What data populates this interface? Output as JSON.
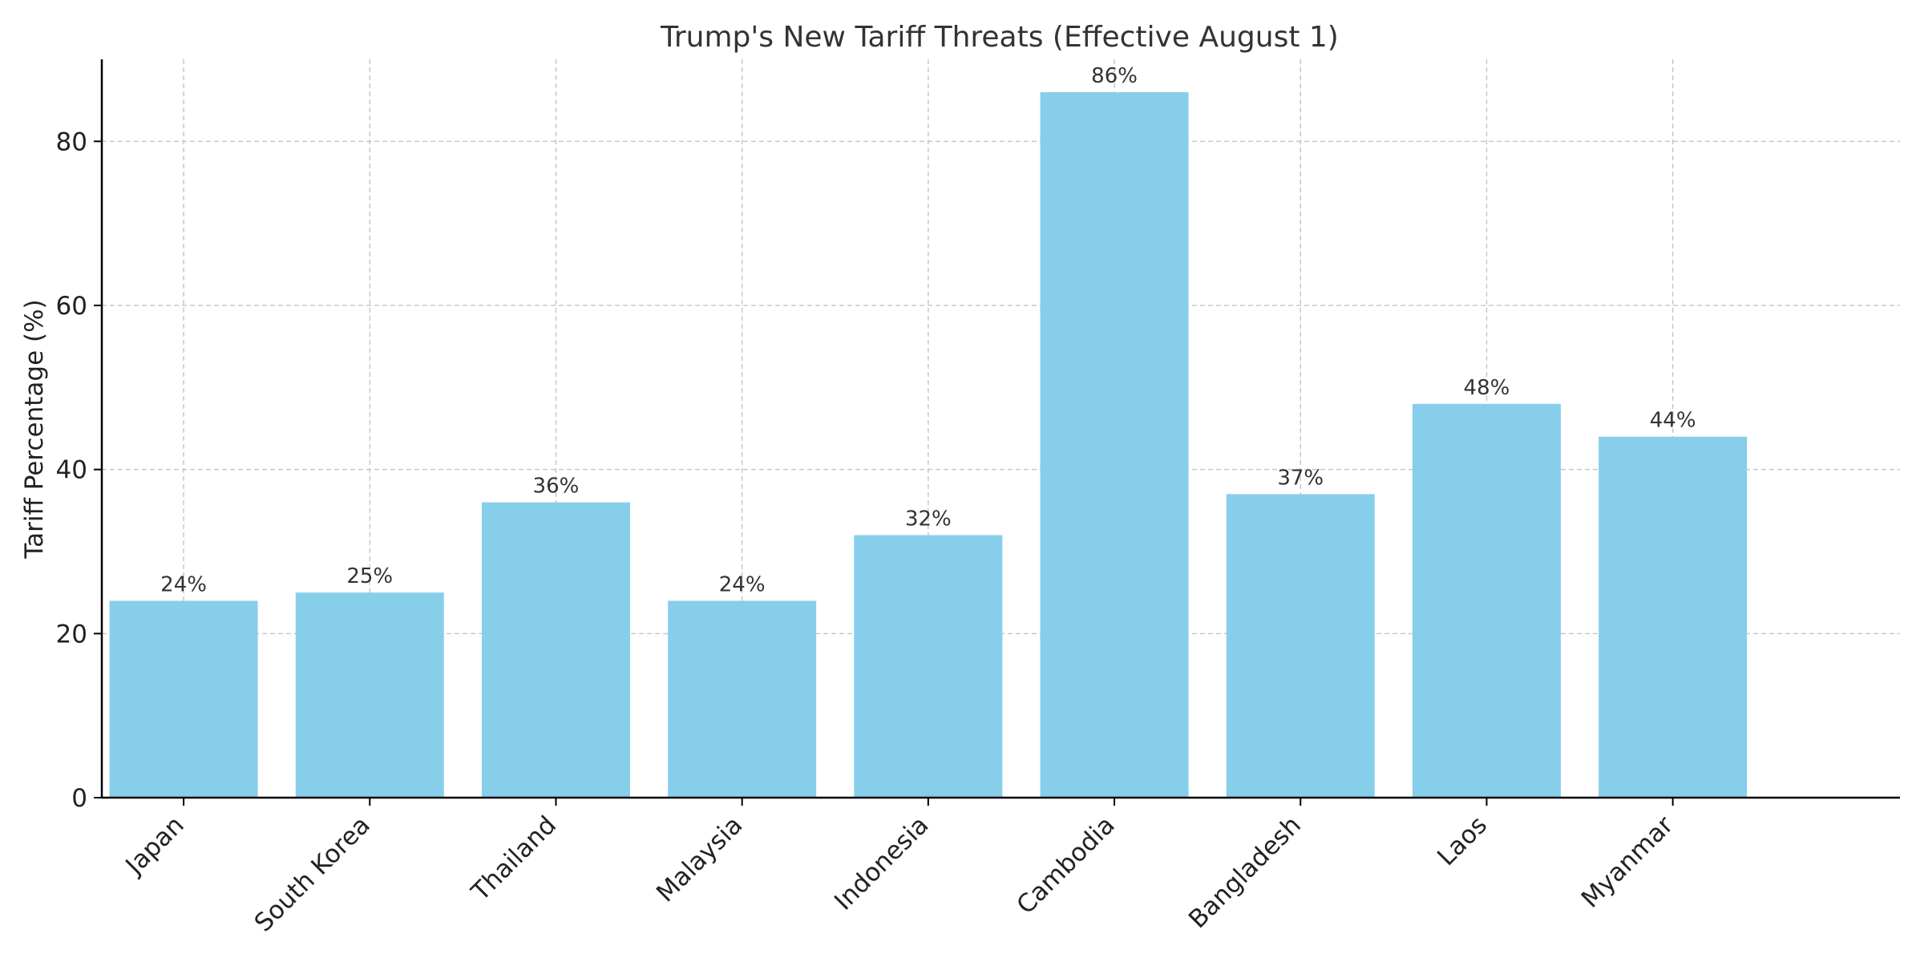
{
  "chart_data": {
    "type": "bar",
    "title": "Trump's New Tariff Threats (Effective August 1)",
    "xlabel": "",
    "ylabel": "Tariff Percentage (%)",
    "categories": [
      "Japan",
      "South Korea",
      "Thailand",
      "Malaysia",
      "Indonesia",
      "Cambodia",
      "Bangladesh",
      "Laos",
      "Myanmar"
    ],
    "values": [
      24,
      25,
      36,
      24,
      32,
      86,
      37,
      48,
      44
    ],
    "bar_labels": [
      "24%",
      "25%",
      "36%",
      "24%",
      "32%",
      "86%",
      "37%",
      "48%",
      "44%"
    ],
    "ylim": [
      0,
      90
    ],
    "yticks": [
      0,
      20,
      40,
      60,
      80
    ],
    "grid": true,
    "legend": "none",
    "colors": {
      "bar": "#87CEEB",
      "grid": "#c8c8c8",
      "axis": "#000000"
    }
  }
}
